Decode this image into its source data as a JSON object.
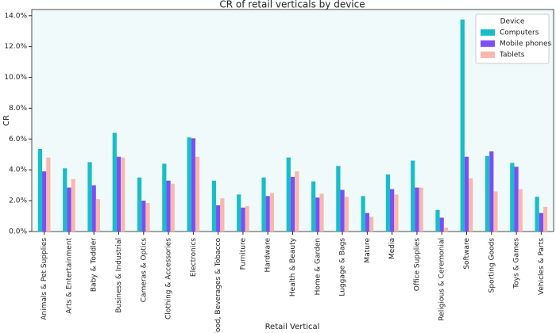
{
  "chart_data": {
    "type": "bar",
    "title": "CR of retail verticals by device",
    "x_label": "Retail Vertical",
    "y_label": "CR",
    "legend_title": "Device",
    "legend_position": "upper right",
    "categories": [
      "Animals & Pet Supplies",
      "Arts & Entertainment",
      "Baby & Toddler",
      "Business & Industrial",
      "Cameras & Optics",
      "Clothing & Accessories",
      "Electronics",
      "Food, Beverages & Tobacco",
      "Furniture",
      "Hardware",
      "Health & Beauty",
      "Home & Garden",
      "Luggage & Bags",
      "Mature",
      "Media",
      "Office Supplies",
      "Religious & Ceremonial",
      "Software",
      "Sporting Goods",
      "Toys & Games",
      "Vehicles & Parts"
    ],
    "series": [
      {
        "name": "Computers",
        "color": "#17bec8",
        "values": [
          5.35,
          4.1,
          4.5,
          6.4,
          3.5,
          4.4,
          6.1,
          3.3,
          2.4,
          3.5,
          4.8,
          3.25,
          4.25,
          2.3,
          3.7,
          4.6,
          1.4,
          13.75,
          4.9,
          4.45,
          2.25
        ]
      },
      {
        "name": "Mobile phones",
        "color": "#7b4ff5",
        "values": [
          3.9,
          2.85,
          3.0,
          4.85,
          2.0,
          3.3,
          6.05,
          1.7,
          1.55,
          2.3,
          3.55,
          2.2,
          2.7,
          1.2,
          2.75,
          2.85,
          0.9,
          4.85,
          5.2,
          4.2,
          1.2
        ]
      },
      {
        "name": "Tablets",
        "color": "#f9b7ad",
        "values": [
          4.8,
          3.4,
          2.1,
          4.8,
          1.85,
          3.1,
          4.85,
          2.15,
          1.65,
          2.5,
          3.9,
          2.45,
          2.25,
          0.95,
          2.4,
          2.85,
          0.25,
          3.45,
          2.6,
          2.75,
          1.6
        ]
      }
    ],
    "ylim": [
      0,
      14.4
    ],
    "yticks": [
      {
        "value": 0,
        "label": "0.0%"
      },
      {
        "value": 2,
        "label": "2.0%"
      },
      {
        "value": 4,
        "label": "4.0%"
      },
      {
        "value": 6,
        "label": "6.0%"
      },
      {
        "value": 8,
        "label": "8.0%"
      },
      {
        "value": 10,
        "label": "10.0%"
      },
      {
        "value": 12,
        "label": "12.0%"
      },
      {
        "value": 14,
        "label": "14.0%"
      }
    ],
    "grid": false
  }
}
